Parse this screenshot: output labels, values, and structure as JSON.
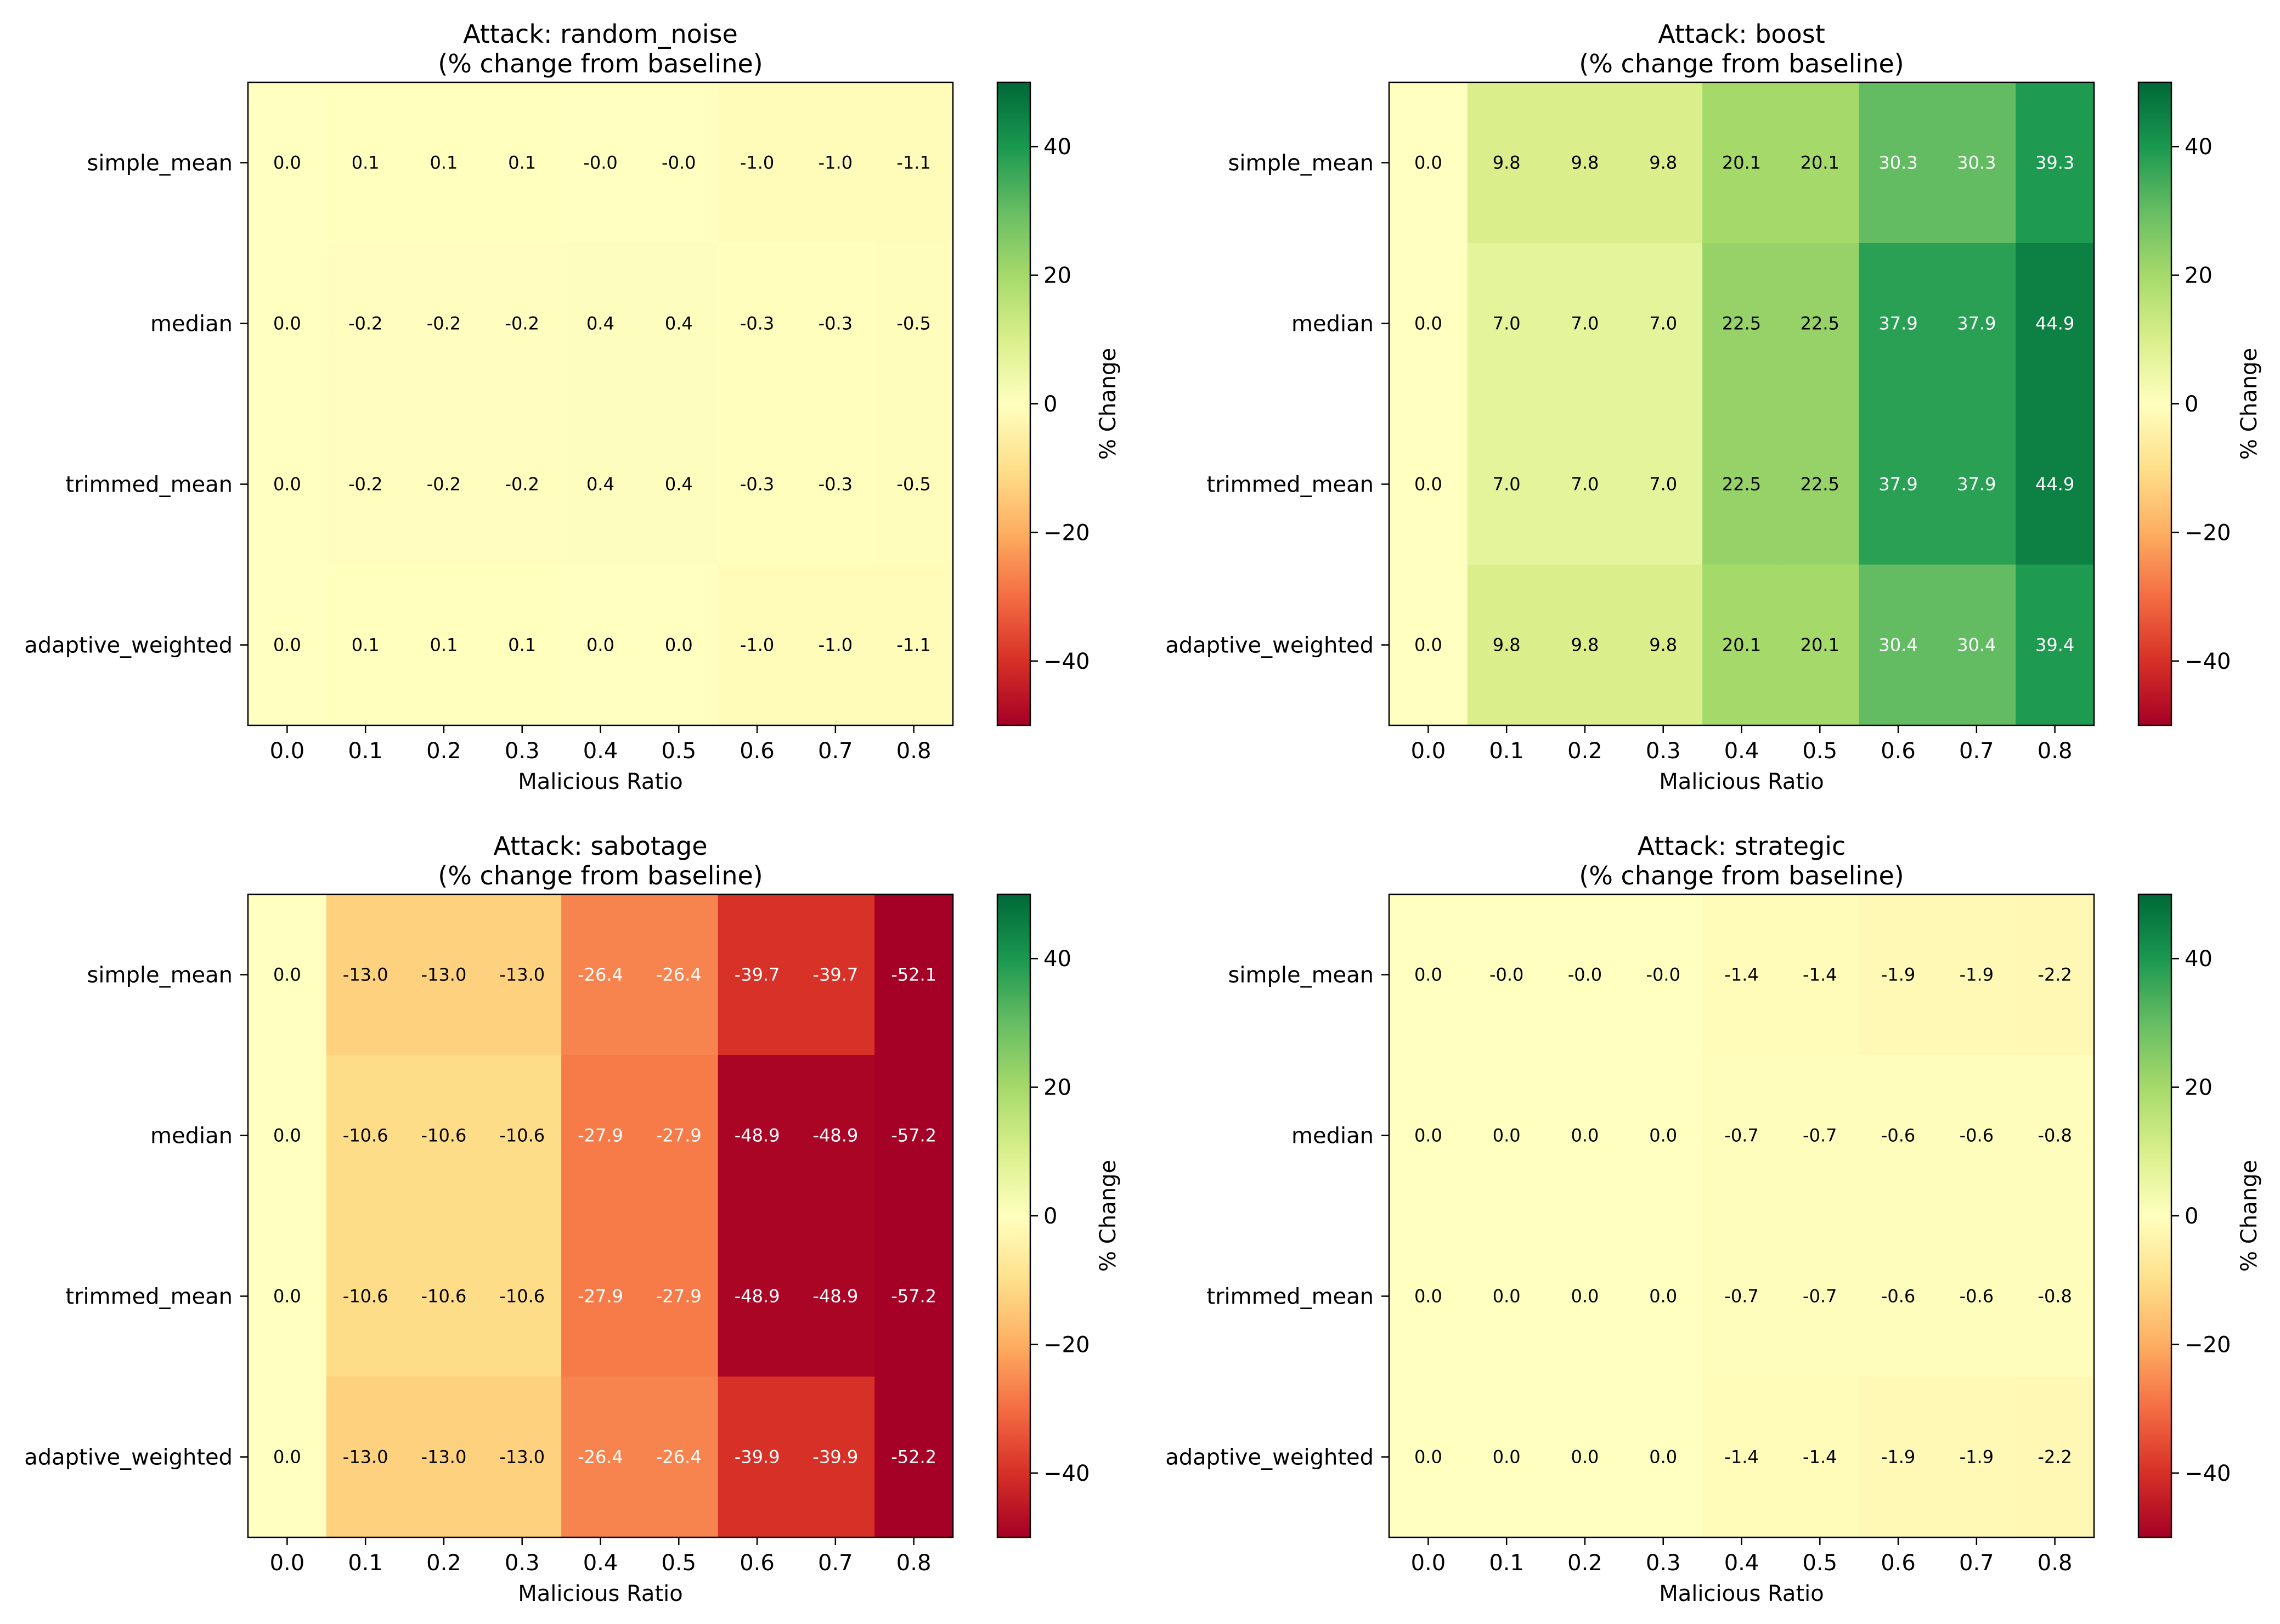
{
  "chart_data": [
    {
      "type": "heatmap",
      "title": "Attack: random_noise",
      "subtitle": "(% change from baseline)",
      "xlabel": "Malicious Ratio",
      "ylabel": "",
      "colorbar_label": "% Change",
      "colormap": "RdYlGn",
      "vmin": -50,
      "vmax": 50,
      "colorbar_ticks": [
        40,
        20,
        0,
        -20,
        -40
      ],
      "x": [
        "0.0",
        "0.1",
        "0.2",
        "0.3",
        "0.4",
        "0.5",
        "0.6",
        "0.7",
        "0.8"
      ],
      "y": [
        "simple_mean",
        "median",
        "trimmed_mean",
        "adaptive_weighted"
      ],
      "values": [
        [
          0.0,
          0.1,
          0.1,
          0.1,
          -0.0,
          -0.0,
          -1.0,
          -1.0,
          -1.1
        ],
        [
          0.0,
          -0.2,
          -0.2,
          -0.2,
          0.4,
          0.4,
          -0.3,
          -0.3,
          -0.5
        ],
        [
          0.0,
          -0.2,
          -0.2,
          -0.2,
          0.4,
          0.4,
          -0.3,
          -0.3,
          -0.5
        ],
        [
          0.0,
          0.1,
          0.1,
          0.1,
          0.0,
          0.0,
          -1.0,
          -1.0,
          -1.1
        ]
      ],
      "labels": [
        [
          "0.0",
          "0.1",
          "0.1",
          "0.1",
          "-0.0",
          "-0.0",
          "-1.0",
          "-1.0",
          "-1.1"
        ],
        [
          "0.0",
          "-0.2",
          "-0.2",
          "-0.2",
          "0.4",
          "0.4",
          "-0.3",
          "-0.3",
          "-0.5"
        ],
        [
          "0.0",
          "-0.2",
          "-0.2",
          "-0.2",
          "0.4",
          "0.4",
          "-0.3",
          "-0.3",
          "-0.5"
        ],
        [
          "0.0",
          "0.1",
          "0.1",
          "0.1",
          "0.0",
          "0.0",
          "-1.0",
          "-1.0",
          "-1.1"
        ]
      ]
    },
    {
      "type": "heatmap",
      "title": "Attack: boost",
      "subtitle": "(% change from baseline)",
      "xlabel": "Malicious Ratio",
      "ylabel": "",
      "colorbar_label": "% Change",
      "colormap": "RdYlGn",
      "vmin": -50,
      "vmax": 50,
      "colorbar_ticks": [
        40,
        20,
        0,
        -20,
        -40
      ],
      "x": [
        "0.0",
        "0.1",
        "0.2",
        "0.3",
        "0.4",
        "0.5",
        "0.6",
        "0.7",
        "0.8"
      ],
      "y": [
        "simple_mean",
        "median",
        "trimmed_mean",
        "adaptive_weighted"
      ],
      "values": [
        [
          0.0,
          9.8,
          9.8,
          9.8,
          20.1,
          20.1,
          30.3,
          30.3,
          39.3
        ],
        [
          0.0,
          7.0,
          7.0,
          7.0,
          22.5,
          22.5,
          37.9,
          37.9,
          44.9
        ],
        [
          0.0,
          7.0,
          7.0,
          7.0,
          22.5,
          22.5,
          37.9,
          37.9,
          44.9
        ],
        [
          0.0,
          9.8,
          9.8,
          9.8,
          20.1,
          20.1,
          30.4,
          30.4,
          39.4
        ]
      ],
      "labels": [
        [
          "0.0",
          "9.8",
          "9.8",
          "9.8",
          "20.1",
          "20.1",
          "30.3",
          "30.3",
          "39.3"
        ],
        [
          "0.0",
          "7.0",
          "7.0",
          "7.0",
          "22.5",
          "22.5",
          "37.9",
          "37.9",
          "44.9"
        ],
        [
          "0.0",
          "7.0",
          "7.0",
          "7.0",
          "22.5",
          "22.5",
          "37.9",
          "37.9",
          "44.9"
        ],
        [
          "0.0",
          "9.8",
          "9.8",
          "9.8",
          "20.1",
          "20.1",
          "30.4",
          "30.4",
          "39.4"
        ]
      ]
    },
    {
      "type": "heatmap",
      "title": "Attack: sabotage",
      "subtitle": "(% change from baseline)",
      "xlabel": "Malicious Ratio",
      "ylabel": "",
      "colorbar_label": "% Change",
      "colormap": "RdYlGn",
      "vmin": -50,
      "vmax": 50,
      "colorbar_ticks": [
        40,
        20,
        0,
        -20,
        -40
      ],
      "x": [
        "0.0",
        "0.1",
        "0.2",
        "0.3",
        "0.4",
        "0.5",
        "0.6",
        "0.7",
        "0.8"
      ],
      "y": [
        "simple_mean",
        "median",
        "trimmed_mean",
        "adaptive_weighted"
      ],
      "values": [
        [
          0.0,
          -13.0,
          -13.0,
          -13.0,
          -26.4,
          -26.4,
          -39.7,
          -39.7,
          -52.1
        ],
        [
          0.0,
          -10.6,
          -10.6,
          -10.6,
          -27.9,
          -27.9,
          -48.9,
          -48.9,
          -57.2
        ],
        [
          0.0,
          -10.6,
          -10.6,
          -10.6,
          -27.9,
          -27.9,
          -48.9,
          -48.9,
          -57.2
        ],
        [
          0.0,
          -13.0,
          -13.0,
          -13.0,
          -26.4,
          -26.4,
          -39.9,
          -39.9,
          -52.2
        ]
      ],
      "labels": [
        [
          "0.0",
          "-13.0",
          "-13.0",
          "-13.0",
          "-26.4",
          "-26.4",
          "-39.7",
          "-39.7",
          "-52.1"
        ],
        [
          "0.0",
          "-10.6",
          "-10.6",
          "-10.6",
          "-27.9",
          "-27.9",
          "-48.9",
          "-48.9",
          "-57.2"
        ],
        [
          "0.0",
          "-10.6",
          "-10.6",
          "-10.6",
          "-27.9",
          "-27.9",
          "-48.9",
          "-48.9",
          "-57.2"
        ],
        [
          "0.0",
          "-13.0",
          "-13.0",
          "-13.0",
          "-26.4",
          "-26.4",
          "-39.9",
          "-39.9",
          "-52.2"
        ]
      ]
    },
    {
      "type": "heatmap",
      "title": "Attack: strategic",
      "subtitle": "(% change from baseline)",
      "xlabel": "Malicious Ratio",
      "ylabel": "",
      "colorbar_label": "% Change",
      "colormap": "RdYlGn",
      "vmin": -50,
      "vmax": 50,
      "colorbar_ticks": [
        40,
        20,
        0,
        -20,
        -40
      ],
      "x": [
        "0.0",
        "0.1",
        "0.2",
        "0.3",
        "0.4",
        "0.5",
        "0.6",
        "0.7",
        "0.8"
      ],
      "y": [
        "simple_mean",
        "median",
        "trimmed_mean",
        "adaptive_weighted"
      ],
      "values": [
        [
          0.0,
          -0.0,
          -0.0,
          -0.0,
          -1.4,
          -1.4,
          -1.9,
          -1.9,
          -2.2
        ],
        [
          0.0,
          0.0,
          0.0,
          0.0,
          -0.7,
          -0.7,
          -0.6,
          -0.6,
          -0.8
        ],
        [
          0.0,
          0.0,
          0.0,
          0.0,
          -0.7,
          -0.7,
          -0.6,
          -0.6,
          -0.8
        ],
        [
          0.0,
          0.0,
          0.0,
          0.0,
          -1.4,
          -1.4,
          -1.9,
          -1.9,
          -2.2
        ]
      ],
      "labels": [
        [
          "0.0",
          "-0.0",
          "-0.0",
          "-0.0",
          "-1.4",
          "-1.4",
          "-1.9",
          "-1.9",
          "-2.2"
        ],
        [
          "0.0",
          "0.0",
          "0.0",
          "0.0",
          "-0.7",
          "-0.7",
          "-0.6",
          "-0.6",
          "-0.8"
        ],
        [
          "0.0",
          "0.0",
          "0.0",
          "0.0",
          "-0.7",
          "-0.7",
          "-0.6",
          "-0.6",
          "-0.8"
        ],
        [
          "0.0",
          "0.0",
          "0.0",
          "0.0",
          "-1.4",
          "-1.4",
          "-1.9",
          "-1.9",
          "-2.2"
        ]
      ]
    }
  ]
}
